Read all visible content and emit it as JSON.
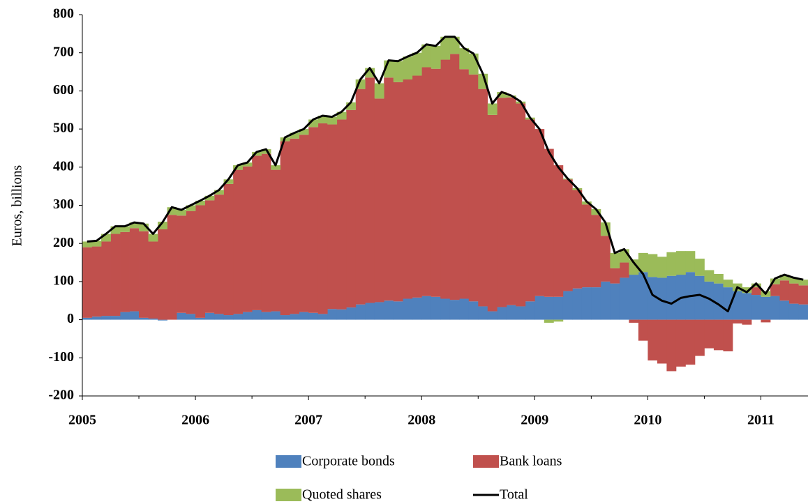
{
  "chart_data": {
    "type": "stacked-bar-line",
    "y_label": "Euros, billions",
    "categories": [
      "2005",
      null,
      null,
      null,
      null,
      null,
      null,
      null,
      null,
      null,
      null,
      null,
      "2006",
      null,
      null,
      null,
      null,
      null,
      null,
      null,
      null,
      null,
      null,
      null,
      "2007",
      null,
      null,
      null,
      null,
      null,
      null,
      null,
      null,
      null,
      null,
      null,
      "2008",
      null,
      null,
      null,
      null,
      null,
      null,
      null,
      null,
      null,
      null,
      null,
      "2009",
      null,
      null,
      null,
      null,
      null,
      null,
      null,
      null,
      null,
      null,
      null,
      "2010",
      null,
      null,
      null,
      null,
      null,
      null,
      null,
      null,
      null,
      null,
      null,
      "2011",
      null,
      null,
      null,
      null
    ],
    "ylim": [
      -200,
      800
    ],
    "yticks": [
      -200,
      -100,
      0,
      100,
      200,
      300,
      400,
      500,
      600,
      700,
      800
    ],
    "series": [
      {
        "name": "Corporate bonds",
        "kind": "bar",
        "color": "#4f81bd",
        "values": [
          5,
          8,
          10,
          10,
          20,
          22,
          5,
          3,
          -2,
          0,
          18,
          15,
          5,
          18,
          15,
          12,
          15,
          20,
          25,
          20,
          22,
          12,
          15,
          20,
          18,
          15,
          28,
          27,
          32,
          40,
          44,
          46,
          50,
          48,
          55,
          58,
          62,
          60,
          55,
          52,
          55,
          48,
          35,
          22,
          33,
          38,
          35,
          48,
          62,
          60,
          60,
          75,
          82,
          85,
          85,
          100,
          95,
          110,
          118,
          125,
          112,
          110,
          115,
          118,
          125,
          115,
          100,
          95,
          85,
          75,
          70,
          65,
          60,
          62,
          50,
          42,
          40
        ]
      },
      {
        "name": "Bank loans",
        "kind": "bar",
        "color": "#c0504d",
        "values": [
          185,
          184,
          195,
          215,
          210,
          218,
          227,
          202,
          237,
          275,
          255,
          270,
          295,
          295,
          313,
          344,
          378,
          382,
          405,
          415,
          371,
          456,
          460,
          465,
          487,
          500,
          484,
          498,
          518,
          565,
          591,
          534,
          585,
          575,
          575,
          582,
          600,
          598,
          627,
          645,
          602,
          595,
          570,
          515,
          549,
          545,
          532,
          477,
          438,
          388,
          345,
          293,
          258,
          217,
          190,
          120,
          40,
          40,
          -8,
          -55,
          -107,
          -115,
          -135,
          -123,
          -118,
          -95,
          -75,
          -80,
          -83,
          -10,
          -13,
          20,
          -7,
          31,
          53,
          53,
          50
        ]
      },
      {
        "name": "Quoted shares",
        "kind": "bar",
        "color": "#9bbb59",
        "values": [
          15,
          15,
          20,
          20,
          15,
          15,
          20,
          20,
          20,
          20,
          15,
          15,
          12,
          12,
          12,
          12,
          12,
          10,
          10,
          12,
          12,
          10,
          15,
          15,
          20,
          20,
          20,
          20,
          20,
          25,
          25,
          40,
          45,
          55,
          60,
          60,
          60,
          60,
          60,
          45,
          55,
          55,
          40,
          30,
          15,
          5,
          5,
          5,
          0,
          -8,
          -5,
          2,
          5,
          8,
          15,
          35,
          40,
          35,
          40,
          50,
          60,
          55,
          62,
          62,
          55,
          45,
          30,
          25,
          20,
          20,
          15,
          10,
          15,
          15,
          15,
          15,
          15
        ]
      },
      {
        "name": "Total",
        "kind": "line",
        "color": "#000000",
        "values": [
          205,
          207,
          225,
          245,
          245,
          255,
          252,
          225,
          255,
          295,
          288,
          300,
          312,
          325,
          340,
          368,
          405,
          412,
          440,
          447,
          405,
          478,
          490,
          500,
          525,
          535,
          532,
          545,
          570,
          630,
          660,
          620,
          680,
          678,
          690,
          700,
          722,
          718,
          742,
          742,
          712,
          698,
          645,
          567,
          597,
          588,
          572,
          530,
          500,
          440,
          400,
          370,
          345,
          310,
          290,
          255,
          175,
          185,
          150,
          120,
          65,
          50,
          42,
          57,
          62,
          65,
          55,
          40,
          22,
          85,
          72,
          95,
          68,
          108,
          118,
          110,
          105
        ]
      }
    ]
  }
}
